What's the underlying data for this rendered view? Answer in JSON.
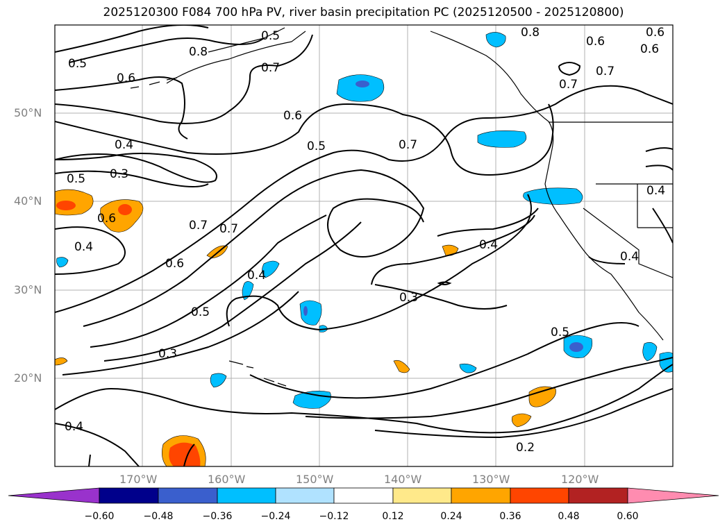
{
  "title": "2025120300 F084 700 hPa PV, river basin precipitation PC (2025120500 - 2025120800)",
  "lat_labels": [
    "50°N",
    "40°N",
    "30°N",
    "20°N"
  ],
  "lon_labels": [
    "170°W",
    "160°W",
    "150°W",
    "140°W",
    "130°W",
    "120°W"
  ],
  "colorbar": {
    "ticks": [
      "−0.60",
      "−0.48",
      "−0.36",
      "−0.24",
      "−0.12",
      "0.12",
      "0.24",
      "0.36",
      "0.48",
      "0.60"
    ],
    "colors": [
      "#9932cc",
      "#00008b",
      "#3a5fcd",
      "#00bfff",
      "#b0e2ff",
      "#ffffff",
      "#ffe98a",
      "#ffa500",
      "#ff4500",
      "#b22222",
      "#ff8cb0"
    ]
  },
  "contour_labels": [
    "0.5",
    "0.6",
    "0.8",
    "0.7",
    "0.6",
    "0.7",
    "0.8",
    "0.6",
    "0.6",
    "0.7",
    "0.7",
    "0.6",
    "0.5",
    "0.7",
    "0.4",
    "0.3",
    "0.5",
    "0.6",
    "0.4",
    "0.7",
    "0.6",
    "0.4",
    "0.5",
    "0.4",
    "0.3",
    "0.3",
    "0.5",
    "0.4",
    "0.2",
    "0.4",
    "0.4",
    "0.5"
  ]
}
